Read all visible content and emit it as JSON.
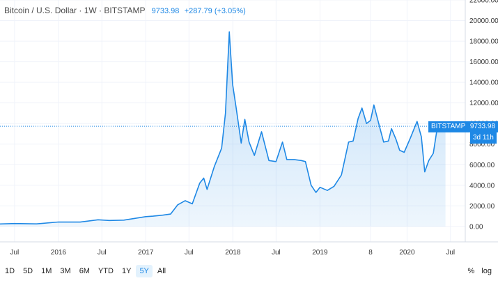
{
  "header": {
    "symbol": "Bitcoin / U.S. Dollar · 1W · BITSTAMP",
    "price": "9733.98",
    "change": "+287.79 (+3.05%)"
  },
  "price_tag": {
    "exchange": "BITSTAMP",
    "price": "9733.98",
    "countdown": "3d 11h"
  },
  "range_buttons": [
    "1D",
    "5D",
    "1M",
    "3M",
    "6M",
    "YTD",
    "1Y",
    "5Y",
    "All"
  ],
  "active_range": "5Y",
  "options": {
    "percent": "%",
    "log": "log"
  },
  "colors": {
    "line": "#1e88e5",
    "fill": "#e3f2fd",
    "grid": "#f0f3fa"
  },
  "chart_data": {
    "type": "area",
    "title": "",
    "xlabel": "",
    "ylabel": "",
    "ylim": [
      -1500,
      22000
    ],
    "y_ticks": [
      "22000.00",
      "20000.00",
      "18000.00",
      "16000.00",
      "14000.00",
      "12000.00",
      "10000.00",
      "8000.00",
      "6000.00",
      "4000.00",
      "2000.00",
      "0.00"
    ],
    "x_ticks": [
      "Jul",
      "2016",
      "Jul",
      "2017",
      "Jul",
      "2018",
      "Jul",
      "2019",
      "8",
      "2020",
      "Jul"
    ],
    "x_tick_dates": [
      "2015-07-01",
      "2016-01-01",
      "2016-07-01",
      "2017-01-01",
      "2017-07-01",
      "2018-01-01",
      "2018-07-01",
      "2019-01-01",
      "2019-08-01",
      "2020-01-01",
      "2020-07-01"
    ],
    "x_range": [
      "2015-05-01",
      "2020-09-01"
    ],
    "series": [
      {
        "x": [
          "2015-05-01",
          "2015-07-01",
          "2015-10-01",
          "2016-01-01",
          "2016-04-01",
          "2016-06-15",
          "2016-08-01",
          "2016-10-01",
          "2017-01-01",
          "2017-02-01",
          "2017-03-15",
          "2017-04-15",
          "2017-05-15",
          "2017-06-15",
          "2017-07-15",
          "2017-08-15",
          "2017-09-01",
          "2017-09-15",
          "2017-10-15",
          "2017-11-15",
          "2017-12-01",
          "2017-12-17",
          "2017-12-31",
          "2018-01-15",
          "2018-02-05",
          "2018-02-20",
          "2018-03-10",
          "2018-04-01",
          "2018-05-01",
          "2018-06-01",
          "2018-07-01",
          "2018-07-28",
          "2018-08-15",
          "2018-09-15",
          "2018-10-15",
          "2018-11-01",
          "2018-11-25",
          "2018-12-15",
          "2019-01-01",
          "2019-02-01",
          "2019-03-01",
          "2019-04-01",
          "2019-05-01",
          "2019-05-20",
          "2019-06-10",
          "2019-06-26",
          "2019-07-15",
          "2019-08-01",
          "2019-08-15",
          "2019-09-01",
          "2019-09-25",
          "2019-10-15",
          "2019-10-28",
          "2019-11-15",
          "2019-12-01",
          "2019-12-20",
          "2020-01-15",
          "2020-02-12",
          "2020-03-01",
          "2020-03-15",
          "2020-04-01",
          "2020-04-20",
          "2020-05-08",
          "2020-05-20",
          "2020-06-01",
          "2020-06-10"
        ],
        "y": [
          240,
          280,
          250,
          430,
          420,
          650,
          580,
          610,
          950,
          1000,
          1100,
          1200,
          2100,
          2500,
          2200,
          4200,
          4700,
          3600,
          5800,
          7600,
          11000,
          18900,
          13800,
          11500,
          8100,
          10400,
          8200,
          6900,
          9200,
          6400,
          6300,
          8200,
          6500,
          6500,
          6400,
          6300,
          4000,
          3300,
          3800,
          3500,
          3900,
          5000,
          8200,
          8300,
          10500,
          11500,
          10000,
          10300,
          11800,
          10300,
          8200,
          8300,
          9500,
          8500,
          7400,
          7200,
          8600,
          10200,
          8700,
          5300,
          6400,
          7100,
          9800,
          9700,
          9500,
          9733.98
        ]
      }
    ]
  }
}
